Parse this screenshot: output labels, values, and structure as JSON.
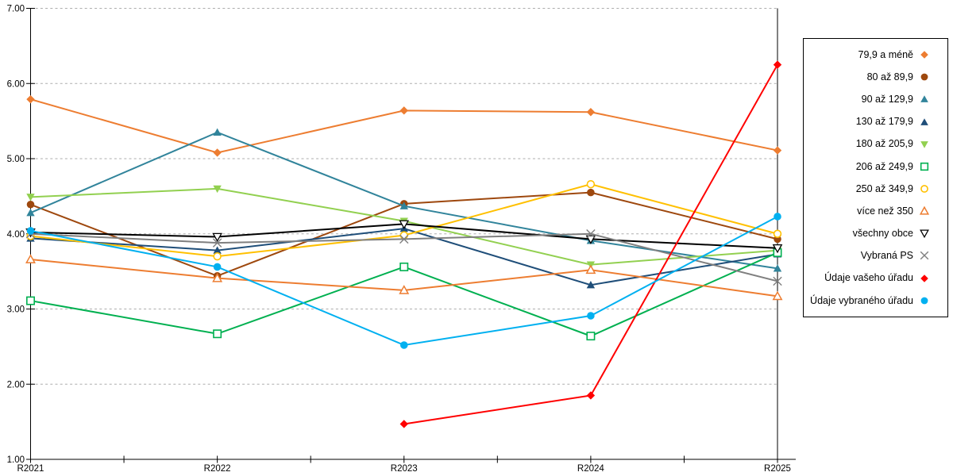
{
  "chart_data": {
    "type": "line",
    "title": "",
    "xlabel": "",
    "ylabel": "",
    "categories": [
      "R2021",
      "R2022",
      "R2023",
      "R2024",
      "R2025"
    ],
    "ylim": [
      1.0,
      7.0
    ],
    "y_ticks": [
      "1.00",
      "2.00",
      "3.00",
      "4.00",
      "5.00",
      "6.00",
      "7.00"
    ],
    "grid": "horizontal-dashed",
    "legend_position": "right-box",
    "series": [
      {
        "name": "79,9 a méně",
        "color": "#ED7D31",
        "marker": "diamond-filled",
        "values": [
          5.79,
          5.08,
          5.64,
          5.62,
          5.11
        ]
      },
      {
        "name": "80 až 89,9",
        "color": "#9E480E",
        "marker": "circle-filled",
        "values": [
          4.39,
          3.44,
          4.4,
          4.55,
          3.93
        ]
      },
      {
        "name": "90 až 129,9",
        "color": "#31849B",
        "marker": "triangle-up-filled",
        "values": [
          4.28,
          5.35,
          4.37,
          3.91,
          3.54
        ]
      },
      {
        "name": "130 až 179,9",
        "color": "#1F4E79",
        "marker": "triangle-up-filled",
        "values": [
          3.94,
          3.78,
          4.07,
          3.32,
          3.73
        ]
      },
      {
        "name": "180 až 205,9",
        "color": "#92D050",
        "marker": "triangle-down-filled",
        "values": [
          4.49,
          4.6,
          4.17,
          3.59,
          3.78
        ]
      },
      {
        "name": "206 až 249,9",
        "color": "#00B050",
        "marker": "square-open",
        "values": [
          3.11,
          2.67,
          3.56,
          2.64,
          3.75
        ]
      },
      {
        "name": "250 až 349,9",
        "color": "#FFC000",
        "marker": "circle-open",
        "values": [
          3.97,
          3.7,
          3.98,
          4.66,
          4.0
        ]
      },
      {
        "name": "více než 350",
        "color": "#ED7D31",
        "marker": "triangle-up-open",
        "values": [
          3.66,
          3.41,
          3.25,
          3.52,
          3.17
        ]
      },
      {
        "name": "všechny obce",
        "color": "#000000",
        "marker": "triangle-down-open",
        "values": [
          4.02,
          3.96,
          4.13,
          3.93,
          3.81
        ]
      },
      {
        "name": "Vybraná PS",
        "color": "#7F7F7F",
        "marker": "x-cross",
        "values": [
          4.0,
          3.88,
          3.93,
          4.0,
          3.37
        ]
      },
      {
        "name": "Údaje vašeho úřadu",
        "color": "#FF0000",
        "marker": "diamond-filled",
        "values": [
          null,
          null,
          1.47,
          1.85,
          6.25
        ]
      },
      {
        "name": "Údaje vybraného úřadu",
        "color": "#00B0F0",
        "marker": "circle-filled",
        "values": [
          4.04,
          3.56,
          2.52,
          2.91,
          4.23
        ]
      }
    ]
  }
}
